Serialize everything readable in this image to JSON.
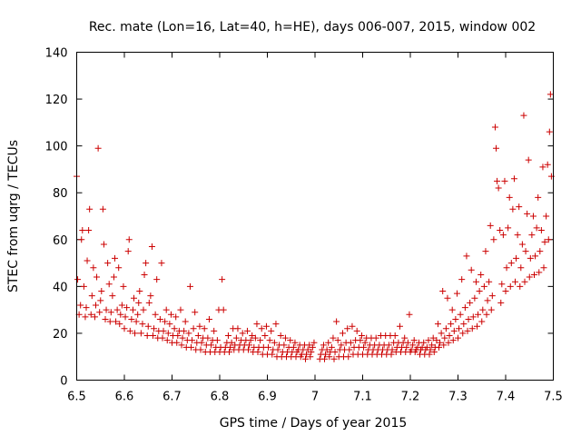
{
  "chart_data": {
    "type": "scatter",
    "title": "Rec. mate (Lon=16, Lat=40, h=HE), days 006-007, 2015, window 002",
    "xlabel": "GPS time / Days of year 2015",
    "ylabel": "STEC from uqrg / TECUs",
    "xlim": [
      6.5,
      7.5
    ],
    "ylim": [
      0,
      140
    ],
    "xticks": [
      "6.5",
      "6.6",
      "6.7",
      "6.8",
      "6.9",
      "7",
      "7.1",
      "7.2",
      "7.3",
      "7.4",
      "7.5"
    ],
    "yticks": [
      "0",
      "20",
      "40",
      "60",
      "80",
      "100",
      "120",
      "140"
    ],
    "grid": false,
    "marker": "plus",
    "color": "#cc0000",
    "points": [
      [
        6.5,
        87
      ],
      [
        6.502,
        43
      ],
      [
        6.505,
        28
      ],
      [
        6.508,
        32
      ],
      [
        6.51,
        60
      ],
      [
        6.512,
        64
      ],
      [
        6.515,
        40
      ],
      [
        6.518,
        27
      ],
      [
        6.52,
        31
      ],
      [
        6.522,
        51
      ],
      [
        6.525,
        64
      ],
      [
        6.527,
        73
      ],
      [
        6.53,
        28
      ],
      [
        6.532,
        36
      ],
      [
        6.535,
        48
      ],
      [
        6.538,
        27
      ],
      [
        6.54,
        32
      ],
      [
        6.542,
        44
      ],
      [
        6.545,
        99
      ],
      [
        6.548,
        29
      ],
      [
        6.55,
        34
      ],
      [
        6.552,
        38
      ],
      [
        6.555,
        73
      ],
      [
        6.557,
        58
      ],
      [
        6.56,
        26
      ],
      [
        6.562,
        30
      ],
      [
        6.565,
        50
      ],
      [
        6.568,
        41
      ],
      [
        6.57,
        25
      ],
      [
        6.572,
        29
      ],
      [
        6.575,
        36
      ],
      [
        6.578,
        44
      ],
      [
        6.58,
        52
      ],
      [
        6.582,
        25
      ],
      [
        6.585,
        30
      ],
      [
        6.588,
        48
      ],
      [
        6.59,
        24
      ],
      [
        6.592,
        28
      ],
      [
        6.595,
        32
      ],
      [
        6.598,
        40
      ],
      [
        6.6,
        22
      ],
      [
        6.602,
        27
      ],
      [
        6.605,
        31
      ],
      [
        6.608,
        55
      ],
      [
        6.61,
        60
      ],
      [
        6.612,
        21
      ],
      [
        6.615,
        26
      ],
      [
        6.618,
        30
      ],
      [
        6.62,
        35
      ],
      [
        6.622,
        20
      ],
      [
        6.625,
        25
      ],
      [
        6.628,
        28
      ],
      [
        6.63,
        33
      ],
      [
        6.632,
        38
      ],
      [
        6.635,
        20
      ],
      [
        6.638,
        24
      ],
      [
        6.64,
        30
      ],
      [
        6.642,
        45
      ],
      [
        6.645,
        50
      ],
      [
        6.648,
        19
      ],
      [
        6.65,
        23
      ],
      [
        6.652,
        33
      ],
      [
        6.655,
        36
      ],
      [
        6.658,
        57
      ],
      [
        6.66,
        19
      ],
      [
        6.662,
        22
      ],
      [
        6.665,
        28
      ],
      [
        6.668,
        43
      ],
      [
        6.67,
        18
      ],
      [
        6.672,
        21
      ],
      [
        6.675,
        26
      ],
      [
        6.678,
        50
      ],
      [
        6.68,
        18
      ],
      [
        6.682,
        21
      ],
      [
        6.685,
        25
      ],
      [
        6.688,
        30
      ],
      [
        6.69,
        17
      ],
      [
        6.692,
        20
      ],
      [
        6.695,
        24
      ],
      [
        6.698,
        28
      ],
      [
        6.7,
        16
      ],
      [
        6.702,
        19
      ],
      [
        6.705,
        22
      ],
      [
        6.708,
        27
      ],
      [
        6.71,
        16
      ],
      [
        6.712,
        19
      ],
      [
        6.715,
        21
      ],
      [
        6.718,
        30
      ],
      [
        6.72,
        15
      ],
      [
        6.722,
        18
      ],
      [
        6.725,
        21
      ],
      [
        6.728,
        25
      ],
      [
        6.73,
        14
      ],
      [
        6.732,
        17
      ],
      [
        6.735,
        20
      ],
      [
        6.738,
        40
      ],
      [
        6.74,
        14
      ],
      [
        6.742,
        17
      ],
      [
        6.745,
        22
      ],
      [
        6.748,
        29
      ],
      [
        6.75,
        13
      ],
      [
        6.752,
        16
      ],
      [
        6.755,
        19
      ],
      [
        6.758,
        23
      ],
      [
        6.76,
        13
      ],
      [
        6.762,
        16
      ],
      [
        6.765,
        18
      ],
      [
        6.768,
        22
      ],
      [
        6.77,
        12
      ],
      [
        6.772,
        15
      ],
      [
        6.775,
        18
      ],
      [
        6.778,
        26
      ],
      [
        6.78,
        12
      ],
      [
        6.782,
        15
      ],
      [
        6.785,
        17
      ],
      [
        6.788,
        21
      ],
      [
        6.79,
        12
      ],
      [
        6.792,
        14
      ],
      [
        6.795,
        17
      ],
      [
        6.798,
        30
      ],
      [
        6.8,
        12
      ],
      [
        6.802,
        14
      ],
      [
        6.805,
        43
      ],
      [
        6.808,
        30
      ],
      [
        6.81,
        12
      ],
      [
        6.812,
        14
      ],
      [
        6.815,
        16
      ],
      [
        6.818,
        19
      ],
      [
        6.82,
        12
      ],
      [
        6.822,
        14
      ],
      [
        6.825,
        16
      ],
      [
        6.828,
        22
      ],
      [
        6.83,
        13
      ],
      [
        6.832,
        15
      ],
      [
        6.835,
        18
      ],
      [
        6.838,
        22
      ],
      [
        6.84,
        13
      ],
      [
        6.842,
        15
      ],
      [
        6.845,
        17
      ],
      [
        6.848,
        20
      ],
      [
        6.85,
        13
      ],
      [
        6.852,
        15
      ],
      [
        6.855,
        17
      ],
      [
        6.858,
        21
      ],
      [
        6.86,
        13
      ],
      [
        6.862,
        15
      ],
      [
        6.865,
        17
      ],
      [
        6.868,
        19
      ],
      [
        6.87,
        12
      ],
      [
        6.872,
        14
      ],
      [
        6.875,
        18
      ],
      [
        6.878,
        24
      ],
      [
        6.88,
        12
      ],
      [
        6.882,
        14
      ],
      [
        6.885,
        17
      ],
      [
        6.888,
        22
      ],
      [
        6.89,
        11
      ],
      [
        6.892,
        14
      ],
      [
        6.895,
        19
      ],
      [
        6.898,
        23
      ],
      [
        6.9,
        11
      ],
      [
        6.902,
        14
      ],
      [
        6.905,
        17
      ],
      [
        6.908,
        21
      ],
      [
        6.91,
        11
      ],
      [
        6.912,
        13
      ],
      [
        6.915,
        16
      ],
      [
        6.918,
        24
      ],
      [
        6.92,
        10
      ],
      [
        6.922,
        13
      ],
      [
        6.925,
        15
      ],
      [
        6.928,
        19
      ],
      [
        6.93,
        10
      ],
      [
        6.932,
        12
      ],
      [
        6.935,
        15
      ],
      [
        6.938,
        18
      ],
      [
        6.94,
        10
      ],
      [
        6.942,
        12
      ],
      [
        6.945,
        14
      ],
      [
        6.948,
        17
      ],
      [
        6.95,
        10
      ],
      [
        6.952,
        12
      ],
      [
        6.955,
        14
      ],
      [
        6.958,
        16
      ],
      [
        6.96,
        10
      ],
      [
        6.962,
        12
      ],
      [
        6.965,
        13
      ],
      [
        6.968,
        15
      ],
      [
        6.97,
        10
      ],
      [
        6.972,
        11
      ],
      [
        6.975,
        13
      ],
      [
        6.978,
        15
      ],
      [
        6.98,
        9
      ],
      [
        6.982,
        11
      ],
      [
        6.985,
        13
      ],
      [
        6.988,
        15
      ],
      [
        6.99,
        10
      ],
      [
        6.992,
        12
      ],
      [
        6.995,
        14
      ],
      [
        6.998,
        16
      ],
      [
        7.01,
        9
      ],
      [
        7.012,
        11
      ],
      [
        7.015,
        13
      ],
      [
        7.018,
        15
      ],
      [
        7.02,
        9
      ],
      [
        7.022,
        11
      ],
      [
        7.025,
        13
      ],
      [
        7.028,
        16
      ],
      [
        7.03,
        10
      ],
      [
        7.032,
        12
      ],
      [
        7.035,
        14
      ],
      [
        7.038,
        18
      ],
      [
        7.04,
        9
      ],
      [
        7.042,
        12
      ],
      [
        7.045,
        25
      ],
      [
        7.048,
        17
      ],
      [
        7.05,
        10
      ],
      [
        7.052,
        13
      ],
      [
        7.055,
        15
      ],
      [
        7.058,
        20
      ],
      [
        7.06,
        10
      ],
      [
        7.062,
        13
      ],
      [
        7.065,
        16
      ],
      [
        7.068,
        22
      ],
      [
        7.07,
        10
      ],
      [
        7.072,
        13
      ],
      [
        7.075,
        16
      ],
      [
        7.078,
        23
      ],
      [
        7.08,
        11
      ],
      [
        7.082,
        14
      ],
      [
        7.085,
        17
      ],
      [
        7.088,
        21
      ],
      [
        7.09,
        11
      ],
      [
        7.092,
        14
      ],
      [
        7.095,
        17
      ],
      [
        7.098,
        19
      ],
      [
        7.1,
        11
      ],
      [
        7.102,
        14
      ],
      [
        7.105,
        16
      ],
      [
        7.108,
        18
      ],
      [
        7.11,
        11
      ],
      [
        7.112,
        13
      ],
      [
        7.115,
        15
      ],
      [
        7.118,
        18
      ],
      [
        7.12,
        11
      ],
      [
        7.122,
        13
      ],
      [
        7.125,
        15
      ],
      [
        7.128,
        18
      ],
      [
        7.13,
        11
      ],
      [
        7.132,
        13
      ],
      [
        7.135,
        15
      ],
      [
        7.138,
        19
      ],
      [
        7.14,
        11
      ],
      [
        7.142,
        13
      ],
      [
        7.145,
        15
      ],
      [
        7.148,
        19
      ],
      [
        7.15,
        11
      ],
      [
        7.152,
        13
      ],
      [
        7.155,
        15
      ],
      [
        7.158,
        19
      ],
      [
        7.16,
        11
      ],
      [
        7.162,
        13
      ],
      [
        7.165,
        16
      ],
      [
        7.168,
        19
      ],
      [
        7.17,
        12
      ],
      [
        7.172,
        14
      ],
      [
        7.175,
        16
      ],
      [
        7.178,
        23
      ],
      [
        7.18,
        12
      ],
      [
        7.182,
        14
      ],
      [
        7.185,
        16
      ],
      [
        7.188,
        18
      ],
      [
        7.19,
        12
      ],
      [
        7.192,
        14
      ],
      [
        7.195,
        16
      ],
      [
        7.198,
        28
      ],
      [
        7.2,
        12
      ],
      [
        7.202,
        13
      ],
      [
        7.205,
        15
      ],
      [
        7.208,
        17
      ],
      [
        7.21,
        12
      ],
      [
        7.212,
        13
      ],
      [
        7.215,
        14
      ],
      [
        7.218,
        16
      ],
      [
        7.22,
        11
      ],
      [
        7.222,
        13
      ],
      [
        7.225,
        14
      ],
      [
        7.228,
        16
      ],
      [
        7.23,
        11
      ],
      [
        7.232,
        13
      ],
      [
        7.235,
        14
      ],
      [
        7.238,
        17
      ],
      [
        7.24,
        11
      ],
      [
        7.242,
        13
      ],
      [
        7.245,
        15
      ],
      [
        7.248,
        18
      ],
      [
        7.25,
        12
      ],
      [
        7.252,
        14
      ],
      [
        7.255,
        17
      ],
      [
        7.258,
        24
      ],
      [
        7.26,
        14
      ],
      [
        7.262,
        16
      ],
      [
        7.265,
        20
      ],
      [
        7.268,
        38
      ],
      [
        7.27,
        15
      ],
      [
        7.272,
        18
      ],
      [
        7.275,
        22
      ],
      [
        7.278,
        35
      ],
      [
        7.28,
        16
      ],
      [
        7.282,
        19
      ],
      [
        7.285,
        24
      ],
      [
        7.288,
        30
      ],
      [
        7.29,
        17
      ],
      [
        7.292,
        21
      ],
      [
        7.295,
        26
      ],
      [
        7.298,
        37
      ],
      [
        7.3,
        18
      ],
      [
        7.302,
        22
      ],
      [
        7.305,
        28
      ],
      [
        7.308,
        43
      ],
      [
        7.31,
        20
      ],
      [
        7.312,
        24
      ],
      [
        7.315,
        31
      ],
      [
        7.318,
        53
      ],
      [
        7.32,
        21
      ],
      [
        7.322,
        26
      ],
      [
        7.325,
        33
      ],
      [
        7.328,
        47
      ],
      [
        7.33,
        22
      ],
      [
        7.332,
        27
      ],
      [
        7.335,
        35
      ],
      [
        7.338,
        42
      ],
      [
        7.34,
        23
      ],
      [
        7.342,
        28
      ],
      [
        7.345,
        38
      ],
      [
        7.348,
        45
      ],
      [
        7.35,
        25
      ],
      [
        7.352,
        30
      ],
      [
        7.355,
        40
      ],
      [
        7.358,
        55
      ],
      [
        7.36,
        28
      ],
      [
        7.362,
        34
      ],
      [
        7.365,
        42
      ],
      [
        7.368,
        66
      ],
      [
        7.37,
        30
      ],
      [
        7.372,
        36
      ],
      [
        7.375,
        60
      ],
      [
        7.378,
        108
      ],
      [
        7.38,
        99
      ],
      [
        7.382,
        85
      ],
      [
        7.385,
        82
      ],
      [
        7.388,
        64
      ],
      [
        7.39,
        33
      ],
      [
        7.392,
        41
      ],
      [
        7.395,
        62
      ],
      [
        7.398,
        85
      ],
      [
        7.4,
        38
      ],
      [
        7.402,
        48
      ],
      [
        7.405,
        65
      ],
      [
        7.408,
        78
      ],
      [
        7.41,
        40
      ],
      [
        7.412,
        50
      ],
      [
        7.415,
        73
      ],
      [
        7.418,
        86
      ],
      [
        7.42,
        42
      ],
      [
        7.422,
        52
      ],
      [
        7.425,
        62
      ],
      [
        7.428,
        74
      ],
      [
        7.43,
        40
      ],
      [
        7.432,
        48
      ],
      [
        7.435,
        58
      ],
      [
        7.438,
        113
      ],
      [
        7.44,
        42
      ],
      [
        7.442,
        55
      ],
      [
        7.445,
        71
      ],
      [
        7.448,
        94
      ],
      [
        7.45,
        44
      ],
      [
        7.452,
        52
      ],
      [
        7.455,
        62
      ],
      [
        7.458,
        70
      ],
      [
        7.46,
        45
      ],
      [
        7.462,
        53
      ],
      [
        7.465,
        65
      ],
      [
        7.468,
        78
      ],
      [
        7.47,
        46
      ],
      [
        7.472,
        55
      ],
      [
        7.475,
        64
      ],
      [
        7.478,
        91
      ],
      [
        7.48,
        48
      ],
      [
        7.482,
        59
      ],
      [
        7.485,
        70
      ],
      [
        7.488,
        92
      ],
      [
        7.49,
        60
      ],
      [
        7.492,
        106
      ],
      [
        7.494,
        122
      ],
      [
        7.496,
        87
      ]
    ]
  }
}
